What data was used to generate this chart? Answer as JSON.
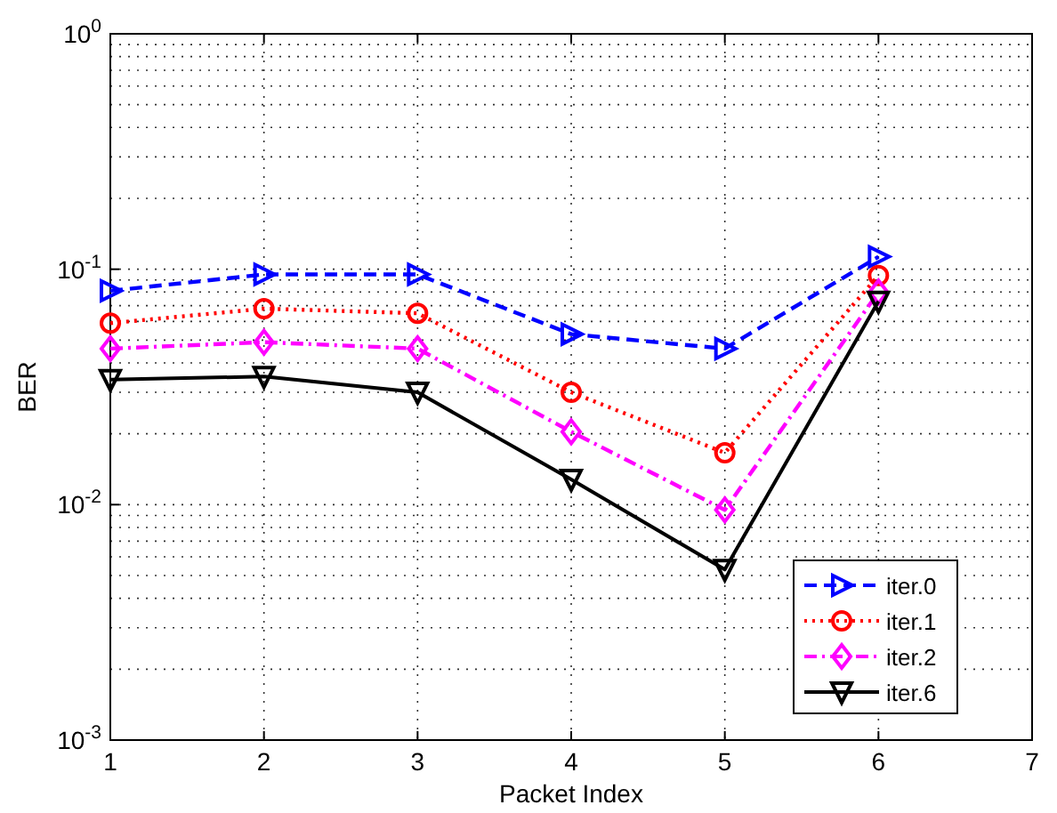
{
  "chart_data": {
    "type": "line",
    "xlabel": "Packet Index",
    "ylabel": "BER",
    "x": [
      1,
      2,
      3,
      4,
      5,
      6
    ],
    "xlim": [
      1,
      7
    ],
    "xticks": [
      1,
      2,
      3,
      4,
      5,
      6,
      7
    ],
    "ylim": [
      0.001,
      1
    ],
    "yticks": [
      {
        "value": 0.001,
        "label": "10$^{-3}$"
      },
      {
        "value": 0.01,
        "label": "10$^{-2}$"
      },
      {
        "value": 0.1,
        "label": "10$^{-1}$"
      },
      {
        "value": 1,
        "label": "10$^{0}$"
      }
    ],
    "log": "y",
    "grid": true,
    "legend": "bottom right",
    "series": [
      {
        "name": "iter.0",
        "color": "#0000ff",
        "marker": "triangle-right",
        "line_style": "dashed",
        "values": [
          0.081,
          0.095,
          0.095,
          0.053,
          0.046,
          0.113
        ]
      },
      {
        "name": "iter.1",
        "color": "#ff0000",
        "marker": "circle",
        "line_style": "dotted",
        "values": [
          0.059,
          0.068,
          0.065,
          0.03,
          0.0166,
          0.094
        ]
      },
      {
        "name": "iter.2",
        "color": "#ff00ff",
        "marker": "diamond",
        "line_style": "dashdot",
        "values": [
          0.046,
          0.049,
          0.046,
          0.0204,
          0.0095,
          0.08
        ]
      },
      {
        "name": "iter.6",
        "color": "#000000",
        "marker": "triangle-down",
        "line_style": "solid",
        "values": [
          0.034,
          0.035,
          0.03,
          0.0128,
          0.0053,
          0.073
        ]
      }
    ]
  }
}
